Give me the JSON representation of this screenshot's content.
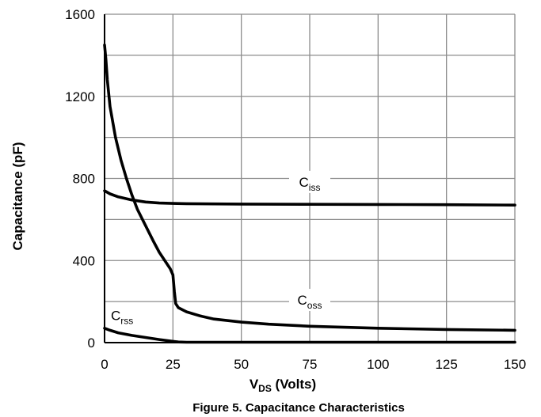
{
  "chart_data": {
    "type": "line",
    "title": "",
    "xlabel": {
      "main": "V",
      "sub": "DS",
      "rest": " (Volts)"
    },
    "ylabel": "Capacitance (pF)",
    "xlim": [
      0,
      150
    ],
    "ylim": [
      0,
      1600
    ],
    "x_ticks": [
      "0",
      "25",
      "50",
      "75",
      "100",
      "125",
      "150"
    ],
    "y_ticks": [
      "0",
      "400",
      "800",
      "1200",
      "1600"
    ],
    "grid": true,
    "caption": "Figure 5. Capacitance Characteristics",
    "colors": {
      "line": "#000000",
      "grid": "#8c8c8c",
      "axis": "#000000"
    },
    "series": [
      {
        "name": {
          "main": "C",
          "sub": "iss"
        },
        "label_at": [
          75,
          760
        ],
        "x": [
          0,
          2,
          5,
          10,
          15,
          20,
          25,
          30,
          40,
          50,
          75,
          100,
          125,
          150
        ],
        "y": [
          740,
          725,
          710,
          695,
          685,
          680,
          678,
          677,
          676,
          675,
          674,
          673,
          672,
          670
        ]
      },
      {
        "name": {
          "main": "C",
          "sub": "oss"
        },
        "label_at": [
          75,
          185
        ],
        "x": [
          0,
          0.5,
          1,
          2,
          4,
          6,
          8,
          10,
          12,
          15,
          18,
          20,
          22,
          24,
          25,
          25.5,
          26,
          27,
          30,
          35,
          40,
          50,
          60,
          75,
          100,
          125,
          150
        ],
        "y": [
          1450,
          1380,
          1280,
          1150,
          1000,
          890,
          800,
          720,
          650,
          570,
          490,
          440,
          400,
          360,
          330,
          250,
          190,
          170,
          150,
          130,
          115,
          100,
          90,
          80,
          70,
          64,
          60
        ]
      },
      {
        "name": {
          "main": "C",
          "sub": "rss"
        },
        "label_at": [
          0,
          110
        ],
        "x": [
          0,
          2,
          5,
          10,
          15,
          20,
          25,
          27,
          30,
          50,
          75,
          100,
          125,
          150
        ],
        "y": [
          70,
          60,
          48,
          35,
          25,
          15,
          6,
          3,
          2,
          2,
          2,
          2,
          2,
          2
        ]
      }
    ]
  }
}
